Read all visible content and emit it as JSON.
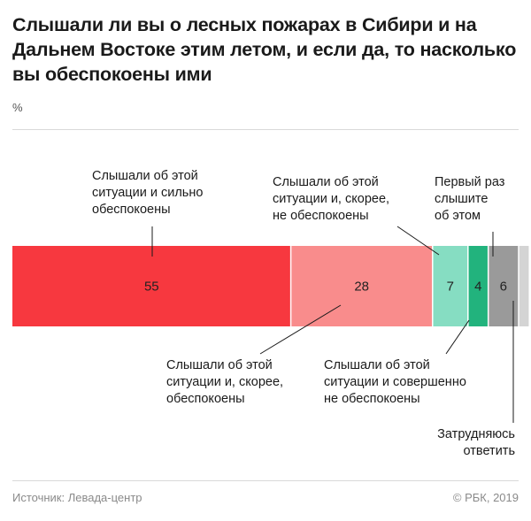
{
  "title": "Слышали ли вы о лесных пожарах в Сибири и на Дальнем Востоке этим летом, и если да, то насколько вы обеспокоены ими",
  "unit": "%",
  "source": "Источник: Левада-центр",
  "copyright": "© РБК, 2019",
  "chart_data": {
    "type": "bar",
    "orientation": "horizontal-stacked-100",
    "xlim": [
      0,
      100
    ],
    "series": [
      {
        "name": "Слышали об этой ситуации и сильно обеспокоены",
        "value": 55,
        "color": "#f7383f",
        "value_label": "55"
      },
      {
        "name": "Слышали об этой ситуации и, скорее, обеспокоены",
        "value": 28,
        "color": "#f98c8c",
        "value_label": "28"
      },
      {
        "name": "Слышали об этой ситуации и, скорее, не обеспокоены",
        "value": 7,
        "color": "#86ddc2",
        "value_label": "7"
      },
      {
        "name": "Слышали об этой ситуации и совершенно не обеспокоены",
        "value": 4,
        "color": "#22b37d",
        "value_label": "4"
      },
      {
        "name": "Первый раз слышите об этом",
        "value": 6,
        "color": "#9a9a9a",
        "value_label": "6"
      },
      {
        "name": "Затрудняюсь ответить",
        "value": 2,
        "color": "#d4d4d4",
        "value_label": ""
      }
    ]
  }
}
